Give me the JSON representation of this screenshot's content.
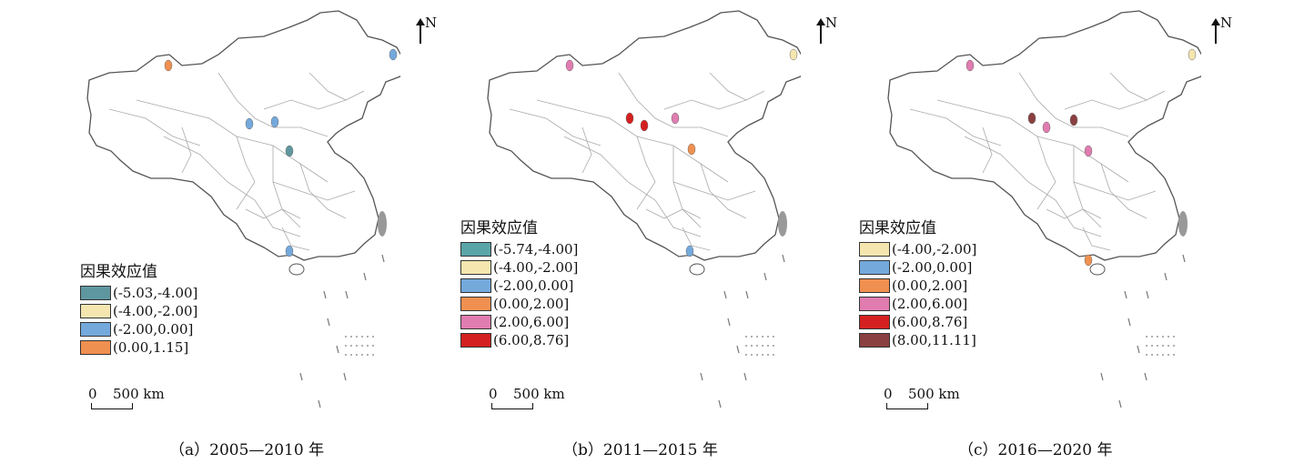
{
  "panels": [
    {
      "caption": "（a）2005—2010 年",
      "legend_title": "因果效应值",
      "legend": [
        {
          "label": "(-5.03,-4.00]",
          "color": "#5f97a0"
        },
        {
          "label": "(-4.00,-2.00]",
          "color": "#f5e6b0"
        },
        {
          "label": "(-2.00,0.00]",
          "color": "#74a9dc"
        },
        {
          "label": "(0.00,1.15]",
          "color": "#f09050"
        }
      ],
      "scale_zero": "0",
      "scale_label": "500 km",
      "north": "N"
    },
    {
      "caption": "（b）2011—2015 年",
      "legend_title": "因果效应值",
      "legend": [
        {
          "label": "(-5.74,-4.00]",
          "color": "#5aa5a8"
        },
        {
          "label": "(-4.00,-2.00]",
          "color": "#f5e6b0"
        },
        {
          "label": "(-2.00,0.00]",
          "color": "#74a9dc"
        },
        {
          "label": "(0.00,2.00]",
          "color": "#f09050"
        },
        {
          "label": "(2.00,6.00]",
          "color": "#e07cb0"
        },
        {
          "label": "(6.00,8.76]",
          "color": "#d42020"
        }
      ],
      "scale_zero": "0",
      "scale_label": "500 km",
      "north": "N"
    },
    {
      "caption": "（c）2016—2020 年",
      "legend_title": "因果效应值",
      "legend": [
        {
          "label": "(-4.00,-2.00]",
          "color": "#f5e6b0"
        },
        {
          "label": "(-2.00,0.00]",
          "color": "#74a9dc"
        },
        {
          "label": "(0.00,2.00]",
          "color": "#f09050"
        },
        {
          "label": "(2.00,6.00]",
          "color": "#e07cb0"
        },
        {
          "label": "(6.00,8.76]",
          "color": "#d42020"
        },
        {
          "label": "(8.00,11.11]",
          "color": "#8a4040"
        }
      ],
      "scale_zero": "0",
      "scale_label": "500 km",
      "north": "N"
    }
  ]
}
